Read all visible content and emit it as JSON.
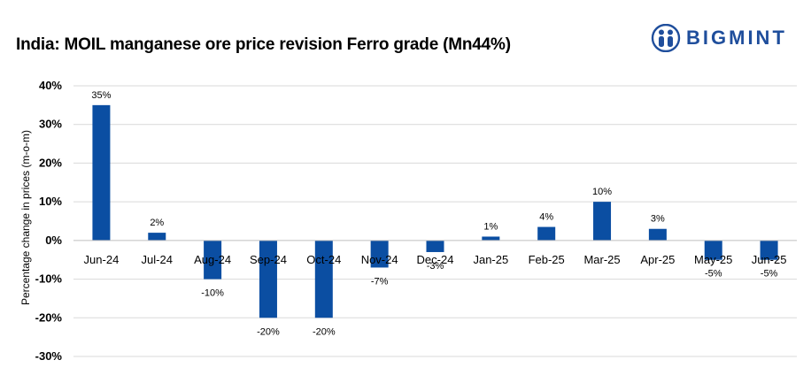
{
  "brand": {
    "name": "BIGMINT",
    "color": "#1f4e9c",
    "icon": "people-icon"
  },
  "colors": {
    "bar": "#0b4ea2",
    "grid": "#d9d9d9",
    "zero_axis": "#bfbfbf"
  },
  "chart_data": {
    "type": "bar",
    "title": "India: MOIL manganese ore price revision Ferro grade (Mn44%)",
    "xlabel": "",
    "ylabel": "Percentage change in prices (m-o-m)",
    "ylim": [
      -30,
      40
    ],
    "yticks": [
      40,
      30,
      20,
      10,
      0,
      -10,
      -20,
      -30
    ],
    "ytick_labels": [
      "40%",
      "30%",
      "20%",
      "10%",
      "0%",
      "-10%",
      "-20%",
      "-30%"
    ],
    "categories": [
      "Jun-24",
      "Jul-24",
      "Aug-24",
      "Sep-24",
      "Oct-24",
      "Nov-24",
      "Dec-24",
      "Jan-25",
      "Feb-25",
      "Mar-25",
      "Apr-25",
      "May-25",
      "Jun-25"
    ],
    "values": [
      35,
      2,
      -10,
      -20,
      -20,
      -7,
      -3,
      1,
      3.5,
      10,
      3,
      -5,
      -5
    ],
    "data_labels": [
      "35%",
      "2%",
      "-10%",
      "-20%",
      "-20%",
      "-7%",
      "-3%",
      "1%",
      "4%",
      "10%",
      "3%",
      "-5%",
      "-5%"
    ],
    "grid": true,
    "legend": "none"
  }
}
